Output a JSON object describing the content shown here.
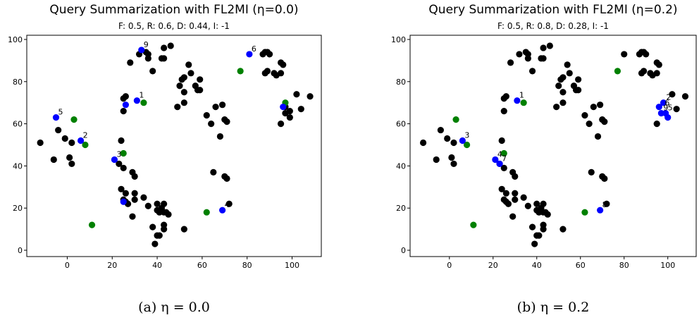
{
  "colors": {
    "default_point": "#000000",
    "summary_point": "#0000ff",
    "query_point": "#008000"
  },
  "chart_data": [
    {
      "type": "scatter",
      "title": "Query Summarization with FL2MI (η=0.0)",
      "subtitle": "F: 0.5, R: 0.6, D: 0.44, I: -1",
      "caption": "(a) η = 0.0",
      "xlim": [
        -18,
        113
      ],
      "ylim": [
        -3,
        102
      ],
      "xticks": [
        0,
        20,
        40,
        60,
        80,
        100
      ],
      "yticks": [
        0,
        20,
        40,
        60,
        80,
        100
      ],
      "grid": false,
      "legend": "none",
      "points": [
        [
          -12,
          51
        ],
        [
          -6,
          43
        ],
        [
          -4,
          57
        ],
        [
          -1,
          53
        ],
        [
          1,
          44
        ],
        [
          2,
          41
        ],
        [
          2,
          51
        ],
        [
          23,
          41
        ],
        [
          25,
          39
        ],
        [
          24,
          52
        ],
        [
          25,
          66
        ],
        [
          25,
          72
        ],
        [
          26,
          73
        ],
        [
          29,
          37
        ],
        [
          30,
          35
        ],
        [
          28,
          89
        ],
        [
          32,
          93
        ],
        [
          35,
          94
        ],
        [
          36,
          93
        ],
        [
          36,
          91
        ],
        [
          38,
          85
        ],
        [
          42,
          91
        ],
        [
          43,
          91
        ],
        [
          43,
          96
        ],
        [
          46,
          97
        ],
        [
          49,
          68
        ],
        [
          50,
          78
        ],
        [
          51,
          81
        ],
        [
          52,
          82
        ],
        [
          52,
          75
        ],
        [
          52,
          70
        ],
        [
          54,
          88
        ],
        [
          55,
          84
        ],
        [
          57,
          78
        ],
        [
          58,
          76
        ],
        [
          59,
          76
        ],
        [
          59,
          81
        ],
        [
          62,
          64
        ],
        [
          64,
          60
        ],
        [
          66,
          68
        ],
        [
          68,
          54
        ],
        [
          69,
          69
        ],
        [
          70,
          62
        ],
        [
          71,
          61
        ],
        [
          70,
          35
        ],
        [
          71,
          34
        ],
        [
          65,
          37
        ],
        [
          72,
          22
        ],
        [
          24,
          29
        ],
        [
          26,
          27
        ],
        [
          25,
          24
        ],
        [
          26,
          23
        ],
        [
          27,
          22
        ],
        [
          30,
          27
        ],
        [
          30,
          24
        ],
        [
          29,
          16
        ],
        [
          34,
          25
        ],
        [
          36,
          21
        ],
        [
          40,
          22
        ],
        [
          40,
          19
        ],
        [
          41,
          18
        ],
        [
          42,
          20
        ],
        [
          43,
          22
        ],
        [
          43,
          18
        ],
        [
          44,
          18
        ],
        [
          45,
          17
        ],
        [
          43,
          12
        ],
        [
          43,
          10
        ],
        [
          38,
          11
        ],
        [
          40,
          7
        ],
        [
          41,
          7
        ],
        [
          39,
          3
        ],
        [
          52,
          10
        ],
        [
          87,
          93
        ],
        [
          88,
          94
        ],
        [
          89,
          94
        ],
        [
          90,
          93
        ],
        [
          89,
          85
        ],
        [
          88,
          84
        ],
        [
          92,
          84
        ],
        [
          93,
          83
        ],
        [
          95,
          84
        ],
        [
          95,
          89
        ],
        [
          96,
          88
        ],
        [
          97,
          65
        ],
        [
          97,
          68
        ],
        [
          99,
          66
        ],
        [
          99,
          63
        ],
        [
          102,
          74
        ],
        [
          104,
          67
        ],
        [
          108,
          73
        ],
        [
          95,
          60
        ]
      ],
      "summary": [
        [
          -5,
          63
        ],
        [
          6,
          52
        ],
        [
          21,
          43
        ],
        [
          33,
          95
        ],
        [
          31,
          71
        ],
        [
          81,
          93
        ],
        [
          25,
          23
        ],
        [
          69,
          19
        ],
        [
          96,
          68
        ],
        [
          26,
          69
        ]
      ],
      "query": [
        [
          3,
          62
        ],
        [
          8,
          50
        ],
        [
          25,
          46
        ],
        [
          34,
          70
        ],
        [
          77,
          85
        ],
        [
          97,
          70
        ],
        [
          62,
          18
        ],
        [
          11,
          12
        ]
      ],
      "labels": [
        "5",
        "2",
        "3",
        "9",
        "1",
        "6",
        "4"
      ]
    },
    {
      "type": "scatter",
      "title": "Query Summarization with FL2MI (η=0.2)",
      "subtitle": "F: 0.5, R: 0.8, D: 0.28, I: -1",
      "caption": "(b) η = 0.2",
      "xlim": [
        -18,
        113
      ],
      "ylim": [
        -3,
        102
      ],
      "xticks": [
        0,
        20,
        40,
        60,
        80,
        100
      ],
      "yticks": [
        0,
        20,
        40,
        60,
        80,
        100
      ],
      "grid": false,
      "legend": "none",
      "points": [
        [
          -12,
          51
        ],
        [
          -6,
          43
        ],
        [
          -4,
          57
        ],
        [
          -1,
          53
        ],
        [
          1,
          44
        ],
        [
          2,
          41
        ],
        [
          2,
          51
        ],
        [
          23,
          41
        ],
        [
          25,
          39
        ],
        [
          24,
          52
        ],
        [
          25,
          66
        ],
        [
          25,
          72
        ],
        [
          26,
          73
        ],
        [
          29,
          37
        ],
        [
          30,
          35
        ],
        [
          28,
          89
        ],
        [
          32,
          93
        ],
        [
          35,
          94
        ],
        [
          36,
          93
        ],
        [
          36,
          91
        ],
        [
          38,
          85
        ],
        [
          42,
          91
        ],
        [
          43,
          91
        ],
        [
          43,
          96
        ],
        [
          46,
          97
        ],
        [
          49,
          68
        ],
        [
          50,
          78
        ],
        [
          51,
          81
        ],
        [
          52,
          82
        ],
        [
          52,
          75
        ],
        [
          52,
          70
        ],
        [
          54,
          88
        ],
        [
          55,
          84
        ],
        [
          57,
          78
        ],
        [
          58,
          76
        ],
        [
          59,
          76
        ],
        [
          59,
          81
        ],
        [
          62,
          64
        ],
        [
          64,
          60
        ],
        [
          66,
          68
        ],
        [
          68,
          54
        ],
        [
          69,
          69
        ],
        [
          70,
          62
        ],
        [
          71,
          61
        ],
        [
          70,
          35
        ],
        [
          71,
          34
        ],
        [
          65,
          37
        ],
        [
          72,
          22
        ],
        [
          24,
          29
        ],
        [
          26,
          27
        ],
        [
          25,
          24
        ],
        [
          26,
          23
        ],
        [
          27,
          22
        ],
        [
          30,
          27
        ],
        [
          30,
          24
        ],
        [
          29,
          16
        ],
        [
          34,
          25
        ],
        [
          36,
          21
        ],
        [
          40,
          22
        ],
        [
          40,
          19
        ],
        [
          41,
          18
        ],
        [
          42,
          20
        ],
        [
          43,
          22
        ],
        [
          43,
          18
        ],
        [
          44,
          18
        ],
        [
          45,
          17
        ],
        [
          43,
          12
        ],
        [
          43,
          10
        ],
        [
          38,
          11
        ],
        [
          40,
          7
        ],
        [
          41,
          7
        ],
        [
          39,
          3
        ],
        [
          52,
          10
        ],
        [
          80,
          93
        ],
        [
          87,
          93
        ],
        [
          88,
          94
        ],
        [
          89,
          94
        ],
        [
          90,
          93
        ],
        [
          89,
          85
        ],
        [
          88,
          84
        ],
        [
          92,
          84
        ],
        [
          93,
          83
        ],
        [
          95,
          84
        ],
        [
          95,
          89
        ],
        [
          96,
          88
        ],
        [
          102,
          74
        ],
        [
          104,
          67
        ],
        [
          108,
          73
        ],
        [
          95,
          60
        ]
      ],
      "summary": [
        [
          31,
          71
        ],
        [
          6,
          52
        ],
        [
          21,
          43
        ],
        [
          23,
          41
        ],
        [
          98,
          70
        ],
        [
          96,
          68
        ],
        [
          99,
          65
        ],
        [
          97,
          65
        ],
        [
          100,
          63
        ],
        [
          69,
          19
        ]
      ],
      "query": [
        [
          3,
          62
        ],
        [
          8,
          50
        ],
        [
          25,
          46
        ],
        [
          34,
          70
        ],
        [
          77,
          85
        ],
        [
          62,
          18
        ],
        [
          11,
          12
        ]
      ],
      "labels": [
        "1",
        "3",
        "4",
        "7",
        "2",
        "6",
        "5",
        "9",
        "8"
      ]
    }
  ]
}
